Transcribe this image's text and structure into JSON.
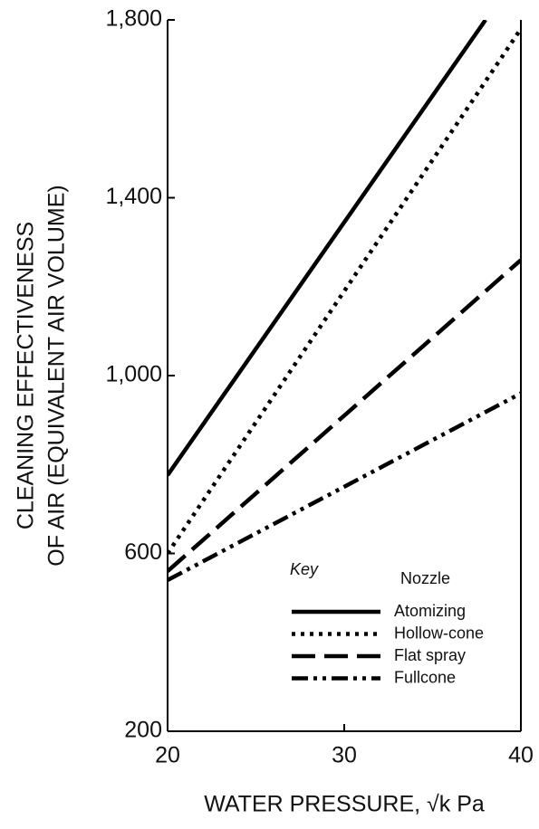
{
  "chart_data": {
    "type": "line",
    "x_label": "WATER PRESSURE, √k Pa",
    "y_label": [
      "CLEANING EFFECTIVENESS",
      "OF AIR (EQUIVALENT AIR VOLUME)"
    ],
    "xlim": [
      20,
      40
    ],
    "xticks": [
      20,
      30,
      40
    ],
    "ylim": [
      200,
      1800
    ],
    "yticks": [
      {
        "value": 200,
        "label": "200"
      },
      {
        "value": 600,
        "label": "600"
      },
      {
        "value": 1000,
        "label": "1,000"
      },
      {
        "value": 1400,
        "label": "1,400"
      },
      {
        "value": 1800,
        "label": "1,800"
      }
    ],
    "legend_title": "Key",
    "legend_header": "Nozzle",
    "legend_position": "lower right",
    "series": [
      {
        "name": "Atomizing",
        "color": "#000000",
        "style": "solid",
        "x": [
          20,
          38
        ],
        "values": [
          776,
          1800
        ]
      },
      {
        "name": "Hollow-cone",
        "color": "#000000",
        "style": "dotted",
        "x": [
          20,
          40
        ],
        "values": [
          600,
          1780
        ]
      },
      {
        "name": "Flat spray",
        "color": "#000000",
        "style": "dashed",
        "x": [
          20,
          40
        ],
        "values": [
          560,
          1260
        ]
      },
      {
        "name": "Fullcone",
        "color": "#000000",
        "style": "dashdotdot",
        "x": [
          20,
          40
        ],
        "values": [
          540,
          960
        ]
      }
    ]
  }
}
